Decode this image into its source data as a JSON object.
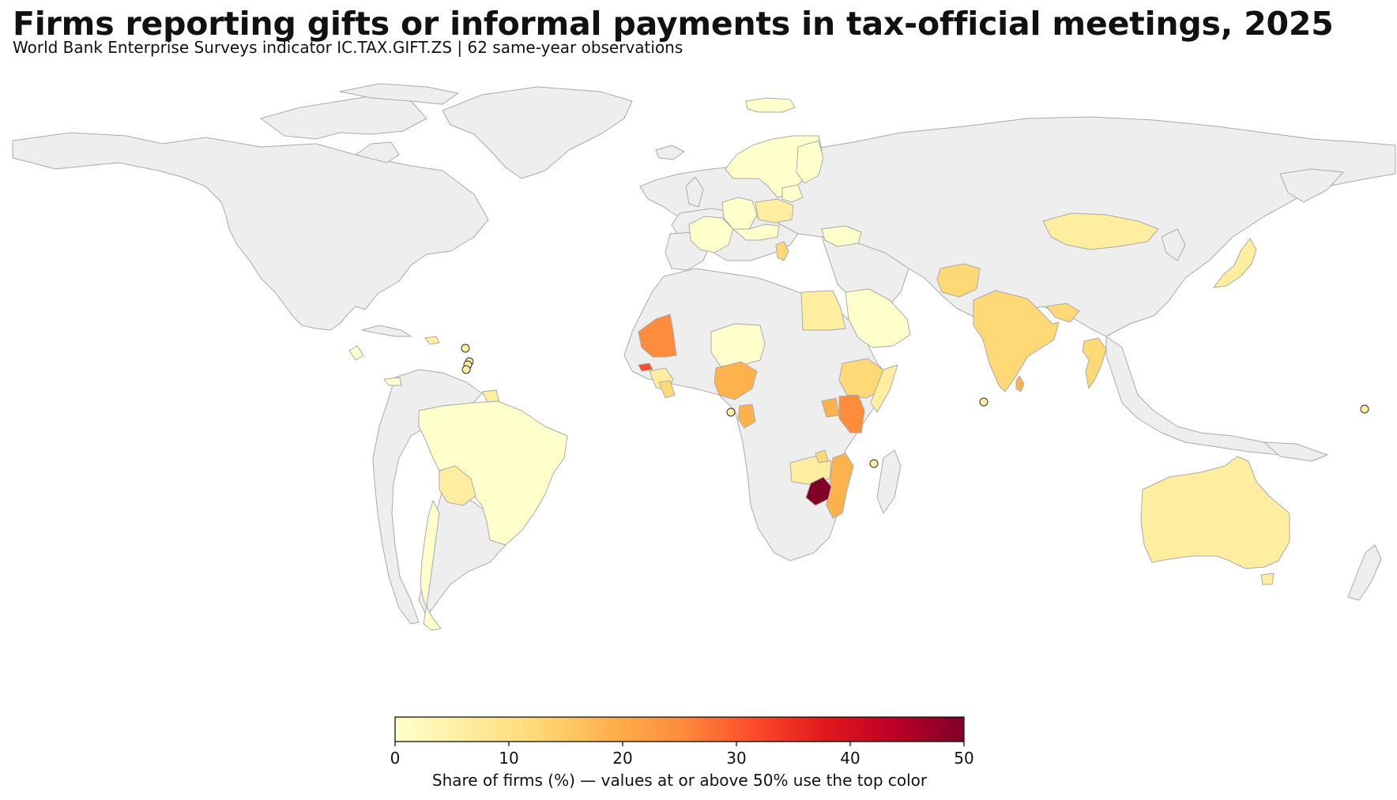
{
  "title": "Firms reporting gifts or informal payments in tax-official meetings, 2025",
  "subtitle": "World Bank Enterprise Surveys indicator IC.TAX.GIFT.ZS | 62 same-year observations",
  "colorbar": {
    "label": "Share of firms (%) — values at or above 50% use the top color",
    "ticks": [
      "0",
      "10",
      "20",
      "30",
      "40",
      "50"
    ],
    "min": 0,
    "max": 50,
    "colors": [
      "#ffffcc",
      "#ffeda0",
      "#fed976",
      "#feb24c",
      "#fd8d3c",
      "#fc4e2a",
      "#e31a1c",
      "#bd0026",
      "#800026"
    ]
  },
  "map": {
    "projection": "equirectangular",
    "no_data_color": "#eeeeee",
    "border_color": "#aaaaaa"
  }
}
